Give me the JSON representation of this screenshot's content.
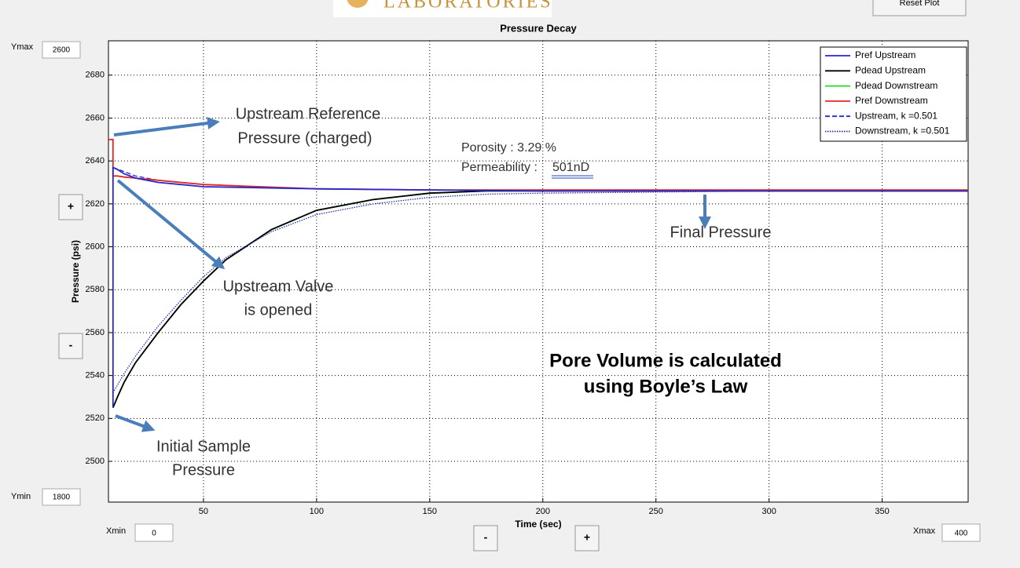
{
  "header": {
    "logo_text": "LABORATORIES",
    "reset_button": "Reset Plot"
  },
  "controls": {
    "ymax_label": "Ymax",
    "ymax": 2600,
    "ymin_label": "Ymin",
    "ymin": 1800,
    "xmin_label": "Xmin",
    "xmin": 0,
    "xmax_label": "Xmax",
    "xmax": 400,
    "y_zoom_in": "+",
    "y_zoom_out": "-",
    "x_zoom_out": "-",
    "x_zoom_in": "+"
  },
  "chart_data": {
    "type": "line",
    "title": "Pressure Decay",
    "x_label": "Time (sec)",
    "y_label": "Pressure (psi)",
    "xlim": [
      8,
      388
    ],
    "ylim": [
      2481,
      2696
    ],
    "xticks": [
      50,
      100,
      150,
      200,
      250,
      300,
      350
    ],
    "yticks": [
      2500,
      2520,
      2540,
      2560,
      2580,
      2600,
      2620,
      2640,
      2660,
      2680
    ],
    "grid": true,
    "legend": "upper right",
    "series": [
      {
        "name": "Pref Upstream",
        "color": "#2828c8",
        "dash": "solid",
        "x": [
          10,
          10,
          12,
          15,
          20,
          30,
          40,
          50,
          75,
          100,
          150,
          200,
          250,
          300,
          388
        ],
        "values": [
          2525,
          2637,
          2636,
          2634,
          2632,
          2630,
          2629,
          2628,
          2627.5,
          2627,
          2626.5,
          2626,
          2626,
          2626,
          2626
        ]
      },
      {
        "name": "Pdead Upstream",
        "color": "#000000",
        "dash": "solid",
        "x": [
          10,
          12,
          15,
          20,
          30,
          40,
          50,
          60,
          80,
          100,
          125,
          150,
          175,
          200,
          250,
          300,
          388
        ],
        "values": [
          2525,
          2530,
          2537,
          2546,
          2560,
          2573,
          2584,
          2594,
          2608,
          2617,
          2622,
          2625,
          2626,
          2626,
          2626,
          2626,
          2626
        ]
      },
      {
        "name": "Pdead Downstream",
        "color": "#22dd22",
        "dash": "solid",
        "x": [
          10,
          12,
          15,
          20,
          30,
          40,
          50,
          60,
          80,
          100,
          125,
          150,
          175,
          200,
          250,
          300,
          388
        ],
        "values": [
          2525,
          2530,
          2537,
          2546,
          2560,
          2573,
          2584,
          2594,
          2608,
          2617,
          2622,
          2625,
          2626,
          2626,
          2626,
          2626,
          2626
        ]
      },
      {
        "name": "Pref Downstream",
        "color": "#e02828",
        "dash": "solid",
        "x": [
          8,
          10,
          10,
          12,
          15,
          20,
          30,
          50,
          75,
          100,
          150,
          200,
          250,
          300,
          388
        ],
        "values": [
          2650,
          2650,
          2633,
          2633,
          2632.5,
          2632,
          2631,
          2629,
          2628,
          2627,
          2626.5,
          2626.5,
          2626.5,
          2626.5,
          2626.5
        ]
      },
      {
        "name": "Upstream, k =0.501",
        "color": "#2828c8",
        "dash": "dashed",
        "x": [
          10,
          15,
          20,
          30,
          50,
          75,
          100,
          150,
          200,
          300,
          388
        ],
        "values": [
          2637,
          2635,
          2633,
          2631,
          2629,
          2628,
          2627,
          2626.5,
          2626,
          2626,
          2626
        ]
      },
      {
        "name": "Downstream, k =0.501",
        "color": "#2828c8",
        "dash": "dotted",
        "x": [
          10,
          15,
          20,
          30,
          40,
          50,
          60,
          80,
          100,
          125,
          150,
          175,
          200,
          250,
          300,
          388
        ],
        "values": [
          2532,
          2541,
          2549,
          2563,
          2575,
          2586,
          2595,
          2607,
          2615,
          2620,
          2623,
          2624.5,
          2625,
          2625.5,
          2626,
          2626
        ]
      }
    ],
    "annotations": {
      "reference": [
        "Upstream Reference",
        "Pressure (charged)"
      ],
      "valve": [
        "Upstream Valve",
        "is opened"
      ],
      "initial": [
        "Initial Sample",
        "Pressure"
      ],
      "final": "Final Pressure",
      "pore_volume": [
        "Pore Volume is calculated",
        "using Boyle’s Law"
      ],
      "porosity": "Porosity : 3.29 %",
      "permeability_label": "Permeability : ",
      "permeability_value": "501nD"
    }
  }
}
